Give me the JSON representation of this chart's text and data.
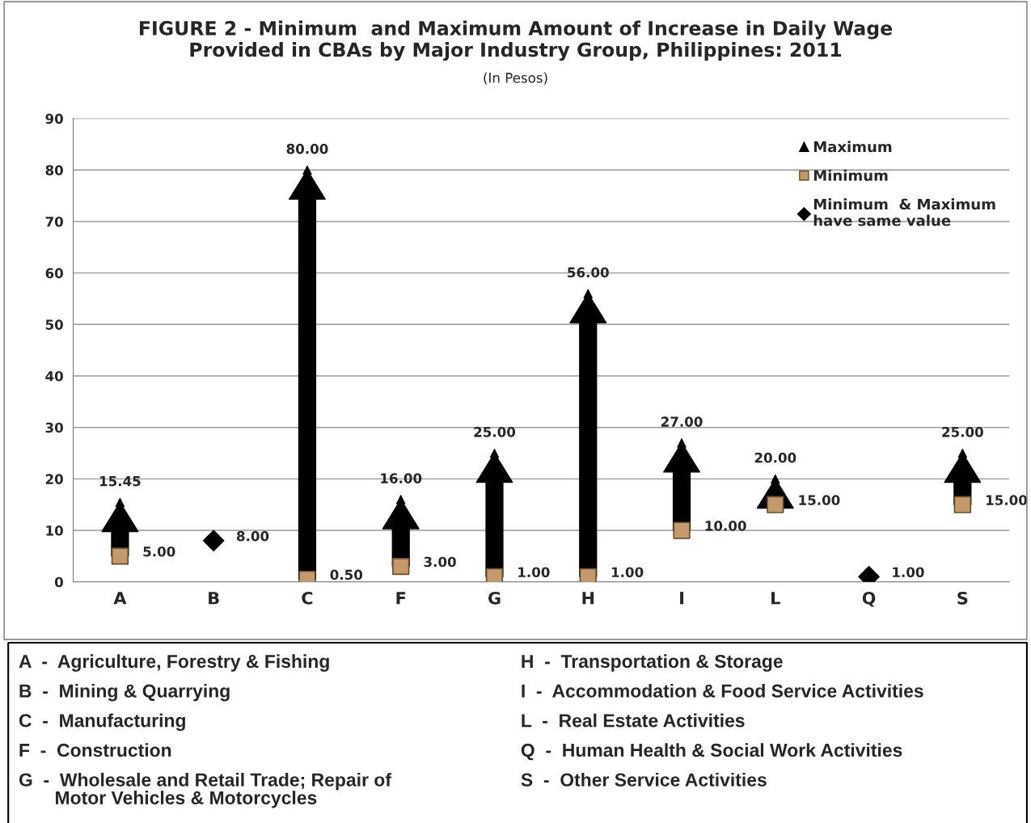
{
  "chart_data": {
    "type": "scatter",
    "title": "FIGURE 2 - Minimum  and Maximum Amount of Increase in Daily Wage\nProvided in CBAs by Major Industry Group, Philippines: 2011",
    "subtitle": "(In Pesos)",
    "categories": [
      "A",
      "B",
      "C",
      "F",
      "G",
      "H",
      "I",
      "L",
      "Q",
      "S"
    ],
    "series": [
      {
        "name": "Maximum",
        "color": "#000000",
        "marker": "triangle",
        "values": [
          15.45,
          null,
          80,
          16,
          25,
          56,
          27,
          20,
          null,
          25
        ],
        "value_labels": [
          "15.45",
          null,
          "80.00",
          "16.00",
          "25.00",
          "56.00",
          "27.00",
          "20.00",
          null,
          "25.00"
        ]
      },
      {
        "name": "Minimum",
        "color": "#c49a6c",
        "marker": "square",
        "values": [
          5,
          null,
          0.5,
          3,
          1,
          1,
          10,
          15,
          null,
          15
        ],
        "value_labels": [
          "5.00",
          null,
          "0.50",
          "3.00",
          "1.00",
          "1.00",
          "10.00",
          "15.00",
          null,
          "15.00"
        ]
      },
      {
        "name": "Minimum  & Maximum\nhave same value",
        "color": "#000000",
        "marker": "diamond",
        "values": [
          null,
          8,
          null,
          null,
          null,
          null,
          null,
          null,
          1,
          null
        ],
        "value_labels": [
          null,
          "8.00",
          null,
          null,
          null,
          null,
          null,
          null,
          "1.00",
          null
        ]
      }
    ],
    "ylim": [
      0,
      90
    ],
    "yticks": [
      0,
      10,
      20,
      30,
      40,
      50,
      60,
      70,
      80,
      90
    ],
    "grid": "y",
    "legend": "top right",
    "annotations": [
      "A  -  Agriculture, Forestry & Fishing",
      "B  -  Mining & Quarrying",
      "C  -  Manufacturing",
      "F  -  Construction",
      "G  -  Wholesale and Retail Trade; Repair of\n       Motor Vehicles & Motorcycles",
      "H  -  Transportation & Storage",
      "I  -  Accommodation & Food Service Activities",
      "L  -  Real Estate Activities",
      "Q  -  Human Health & Social Work Activities",
      "S  -  Other Service Activities"
    ]
  }
}
